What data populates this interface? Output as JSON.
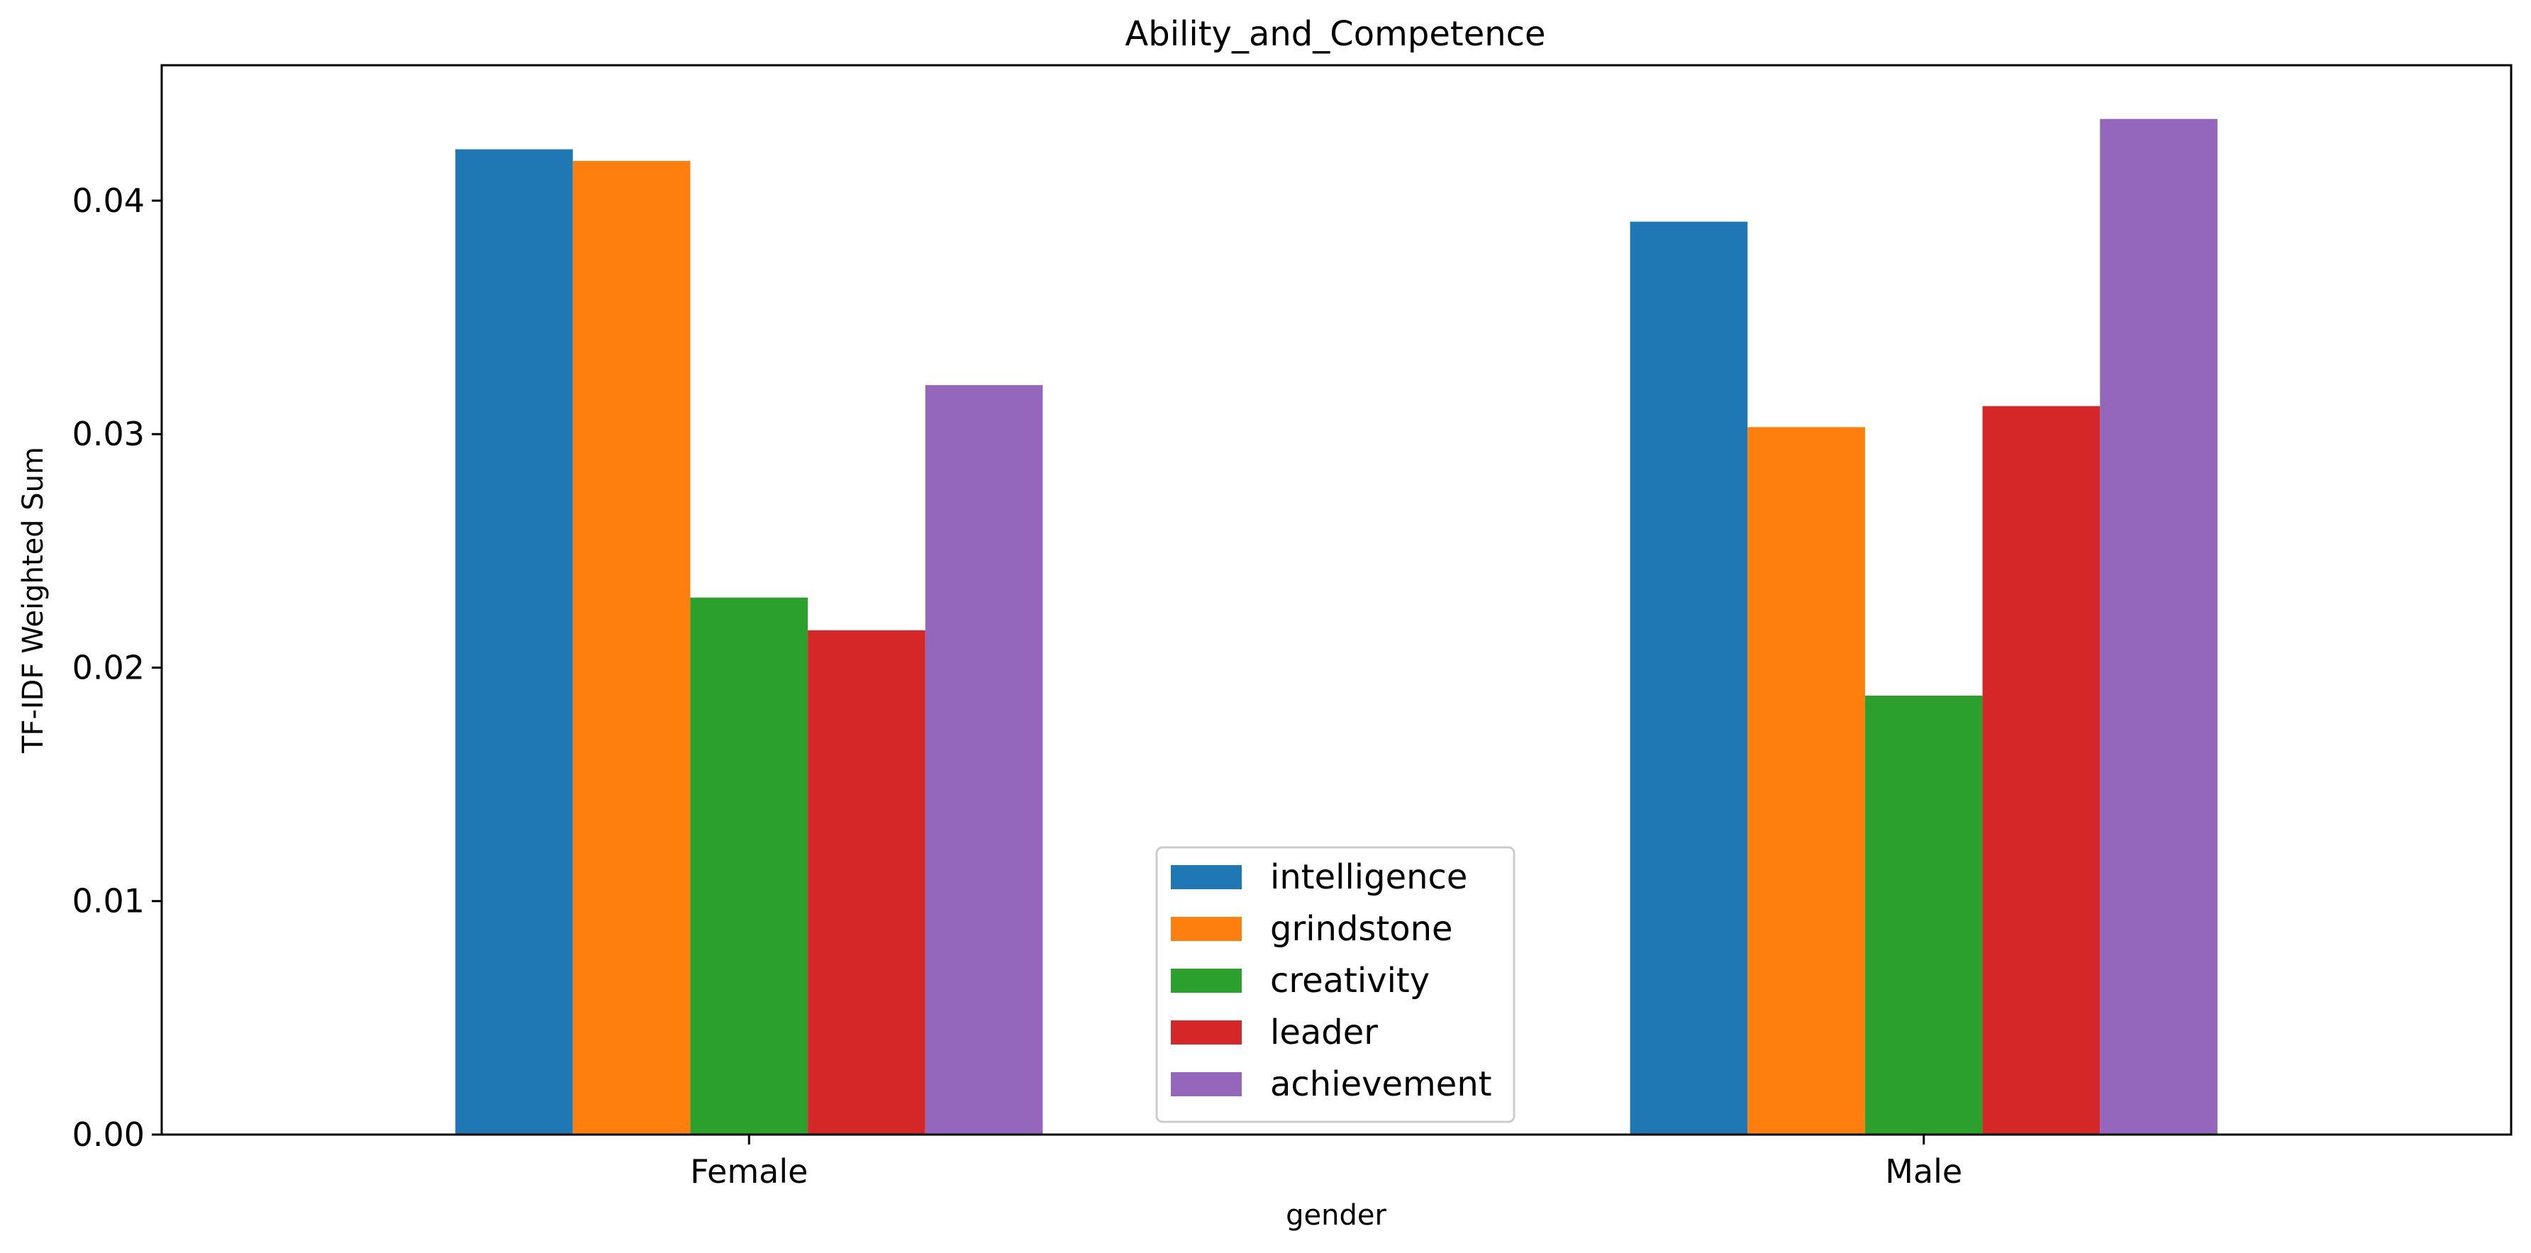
{
  "chart_data": {
    "type": "bar",
    "title": "Ability_and_Competence",
    "xlabel": "gender",
    "ylabel": "TF-IDF Weighted Sum",
    "categories": [
      "Female",
      "Male"
    ],
    "ylim": [
      0,
      0.0458
    ],
    "yticks": [
      "0.00",
      "0.01",
      "0.02",
      "0.03",
      "0.04"
    ],
    "grid": false,
    "legend_position": "lower center",
    "series": [
      {
        "name": "intelligence",
        "color": "#1f77b4",
        "values": [
          0.0422,
          0.0391
        ]
      },
      {
        "name": "grindstone",
        "color": "#ff7f0e",
        "values": [
          0.0417,
          0.0303
        ]
      },
      {
        "name": "creativity",
        "color": "#2ca02c",
        "values": [
          0.023,
          0.0188
        ]
      },
      {
        "name": "leader",
        "color": "#d62728",
        "values": [
          0.0216,
          0.0312
        ]
      },
      {
        "name": "achievement",
        "color": "#9467bd",
        "values": [
          0.0321,
          0.0435
        ]
      }
    ]
  }
}
